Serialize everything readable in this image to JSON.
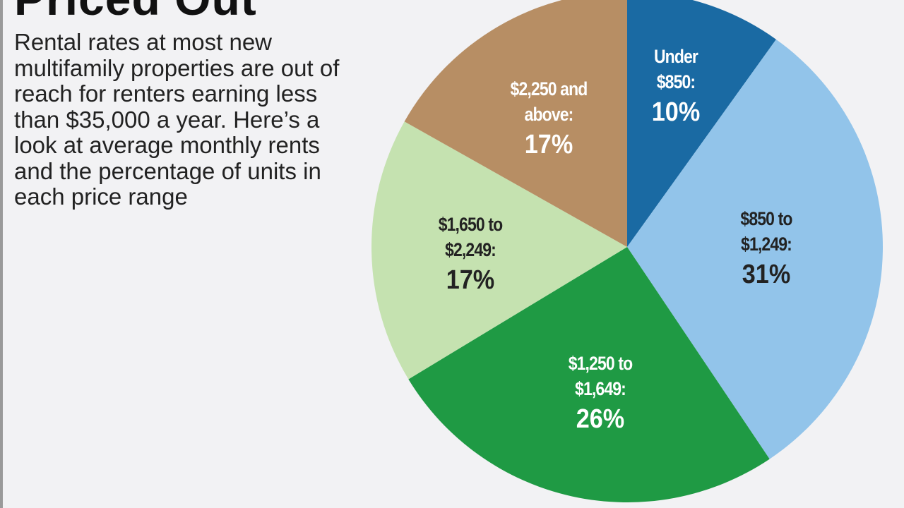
{
  "chart_data": {
    "type": "pie",
    "title": "Priced Out",
    "subtitle": "Rental rates at most new multifamily properties are out of reach for renters earning less than $35,000 a year. Here’s a look at average monthly rents and the percentage of units in each price range",
    "slices": [
      {
        "label_line1": "Under",
        "label_line2": "$850:",
        "value": 10,
        "value_label": "10%",
        "color": "#1a6aa3",
        "text_color": "#ffffff"
      },
      {
        "label_line1": "$850 to",
        "label_line2": "$1,249:",
        "value": 31,
        "value_label": "31%",
        "color": "#92c4ea",
        "text_color": "#222222"
      },
      {
        "label_line1": "$1,250 to",
        "label_line2": "$1,649:",
        "value": 26,
        "value_label": "26%",
        "color": "#1f9a44",
        "text_color": "#ffffff"
      },
      {
        "label_line1": "$1,650 to",
        "label_line2": "$2,249:",
        "value": 17,
        "value_label": "17%",
        "color": "#c5e2b0",
        "text_color": "#222222"
      },
      {
        "label_line1": "$2,250 and",
        "label_line2": "above:",
        "value": 17,
        "value_label": "17%",
        "color": "#b78e64",
        "text_color": "#ffffff"
      }
    ],
    "start": "top",
    "direction": "clockwise"
  }
}
